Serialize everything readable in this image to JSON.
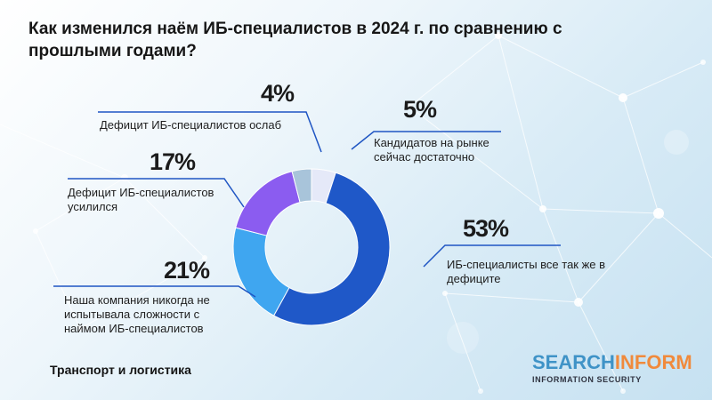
{
  "title": "Как изменился наём ИБ-специалистов в 2024 г. по сравнению с прошлыми годами?",
  "footer": "Транспорт и логистика",
  "logo": {
    "part1": "SEARCH",
    "part2": "INFORM",
    "subtitle": "INFORMATION SECURITY"
  },
  "colors": {
    "line": "#1f55c3",
    "accent_logo_blue": "#3f93c7",
    "accent_logo_orange": "#f08a3c"
  },
  "chart_data": {
    "type": "pie",
    "donut": true,
    "title": "Как изменился наём ИБ-специалистов в 2024 г. по сравнению с прошлыми годами?",
    "slices": [
      {
        "pct_label": "5%",
        "value": 5,
        "label": "Кандидатов на рынке сейчас достаточно",
        "color": "#e5e9f8"
      },
      {
        "pct_label": "53%",
        "value": 53,
        "label": "ИБ-специалисты все так же в дефиците",
        "color": "#1f58c8"
      },
      {
        "pct_label": "21%",
        "value": 21,
        "label": "Наша компания никогда не испытывала сложности с наймом ИБ-специалистов",
        "color": "#3fa6f0"
      },
      {
        "pct_label": "17%",
        "value": 17,
        "label": "Дефицит ИБ-специалистов усилился",
        "color": "#8b5cf0"
      },
      {
        "pct_label": "4%",
        "value": 4,
        "label": "Дефицит ИБ-специалистов ослаб",
        "color": "#a8c4da"
      }
    ]
  }
}
